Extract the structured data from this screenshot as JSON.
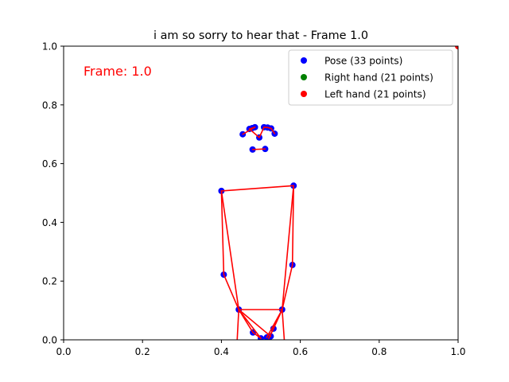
{
  "chart_data": {
    "type": "scatter",
    "title": "i am so sorry to hear that - Frame 1.0",
    "annotation": "Frame: 1.0",
    "xlabel": "",
    "ylabel": "",
    "xlim": [
      0.0,
      1.0
    ],
    "ylim": [
      0.0,
      1.0
    ],
    "xticks": [
      "0.0",
      "0.2",
      "0.4",
      "0.6",
      "0.8",
      "1.0"
    ],
    "yticks": [
      "0.0",
      "0.2",
      "0.4",
      "0.6",
      "0.8",
      "1.0"
    ],
    "grid": false,
    "legend_position": "top-right",
    "legend": [
      {
        "label": "Pose (33 points)",
        "color": "#0000ff"
      },
      {
        "label": "Right hand (21 points)",
        "color": "#008000"
      },
      {
        "label": "Left hand (21 points)",
        "color": "#ff0000"
      }
    ],
    "pose_points": [
      [
        0.496,
        0.689
      ],
      [
        0.471,
        0.718
      ],
      [
        0.478,
        0.721
      ],
      [
        0.485,
        0.724
      ],
      [
        0.508,
        0.724
      ],
      [
        0.517,
        0.723
      ],
      [
        0.526,
        0.72
      ],
      [
        0.454,
        0.7
      ],
      [
        0.535,
        0.702
      ],
      [
        0.479,
        0.648
      ],
      [
        0.511,
        0.65
      ],
      [
        0.4,
        0.507
      ],
      [
        0.583,
        0.525
      ],
      [
        0.406,
        0.222
      ],
      [
        0.58,
        0.255
      ],
      [
        0.444,
        0.103
      ],
      [
        0.554,
        0.103
      ],
      [
        0.48,
        0.025
      ],
      [
        0.532,
        0.038
      ],
      [
        0.5,
        0.005
      ],
      [
        0.52,
        0.005
      ],
      [
        0.525,
        0.012
      ],
      [
        0.515,
        0.008
      ]
    ],
    "pose_connections": [
      [
        0,
        1
      ],
      [
        1,
        2
      ],
      [
        2,
        3
      ],
      [
        3,
        7
      ],
      [
        0,
        4
      ],
      [
        4,
        5
      ],
      [
        5,
        6
      ],
      [
        6,
        8
      ],
      [
        9,
        10
      ],
      [
        11,
        12
      ],
      [
        11,
        13
      ],
      [
        13,
        15
      ],
      [
        12,
        14
      ],
      [
        14,
        16
      ],
      [
        15,
        17
      ],
      [
        15,
        19
      ],
      [
        15,
        21
      ],
      [
        17,
        19
      ],
      [
        16,
        18
      ],
      [
        16,
        20
      ],
      [
        16,
        22
      ],
      [
        18,
        20
      ],
      [
        15,
        16
      ]
    ],
    "extra_lines": [
      [
        [
          0.444,
          0.103
        ],
        [
          0.438,
          -0.05
        ]
      ],
      [
        [
          0.554,
          0.103
        ],
        [
          0.562,
          -0.05
        ]
      ],
      [
        [
          0.4,
          0.507
        ],
        [
          0.444,
          0.103
        ]
      ],
      [
        [
          0.583,
          0.525
        ],
        [
          0.554,
          0.103
        ]
      ]
    ],
    "left_hand_points": [
      [
        1.0,
        1.0
      ]
    ]
  }
}
